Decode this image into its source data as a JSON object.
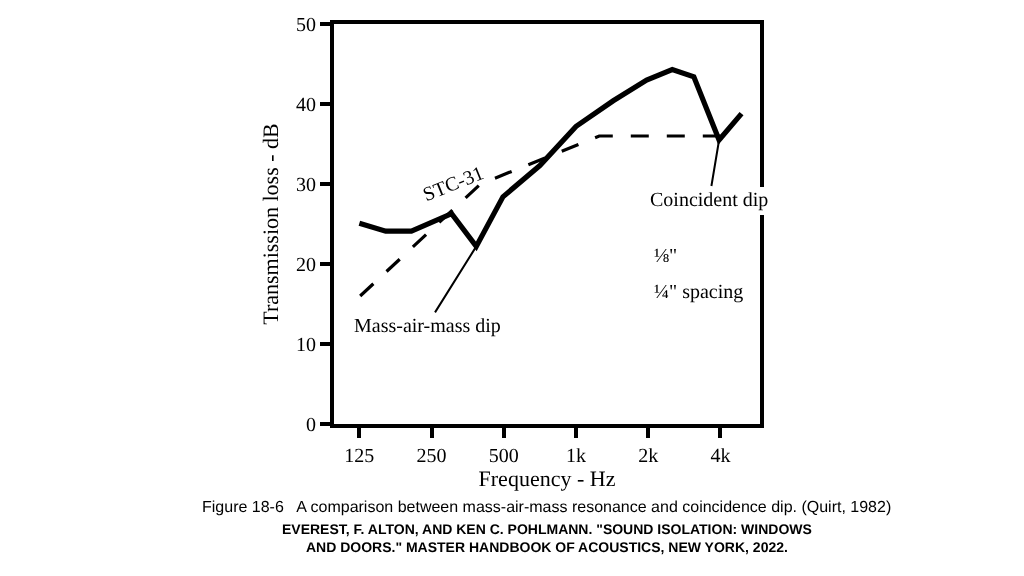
{
  "chart_data": {
    "type": "line",
    "xlabel": "Frequency - Hz",
    "ylabel": "Transmission loss - dB",
    "log": "x",
    "xlim": [
      98,
      5850
    ],
    "ylim": [
      0,
      50
    ],
    "xticks": [
      125,
      250,
      500,
      {
        "value": 1000,
        "label": "1k"
      },
      {
        "value": 2000,
        "label": "2k"
      },
      {
        "value": 4000,
        "label": "4k"
      }
    ],
    "yticks": [
      0,
      10,
      20,
      30,
      40,
      50
    ],
    "legend": false,
    "series": [
      {
        "color": "#000000",
        "line_style": "solid",
        "x": [
          125,
          161,
          206,
          303,
          384,
          496,
          707,
          1000,
          1430,
          1970,
          2520,
          3100,
          3950,
          4900
        ],
        "values": [
          25.1,
          24.1,
          24.1,
          26.3,
          22.2,
          28.4,
          32.3,
          37.2,
          40.4,
          43,
          44.3,
          43.4,
          35.5,
          38.8
        ]
      },
      {
        "name": "STC-31",
        "color": "#000000",
        "line_style": "dashed",
        "x": [
          126,
          400,
          1250,
          4000
        ],
        "values": [
          16,
          30,
          36,
          36
        ]
      }
    ],
    "annotations": [
      {
        "text": "Mass-air-mass dip",
        "x": 384,
        "y": 22.2
      },
      {
        "text": "Coincident dip",
        "x": 3950,
        "y": 35.5
      },
      "⅛\"",
      "¼\" spacing",
      "Figure 18-6   A comparison between mass-air-mass resonance and coincidence dip. (Quirt, 1982)",
      "EVEREST, F. ALTON, AND KEN C. POHLMANN. \"SOUND ISOLATION: WINDOWS AND DOORS.\" MASTER HANDBOOK OF ACOUSTICS, NEW YORK, 2022."
    ]
  }
}
